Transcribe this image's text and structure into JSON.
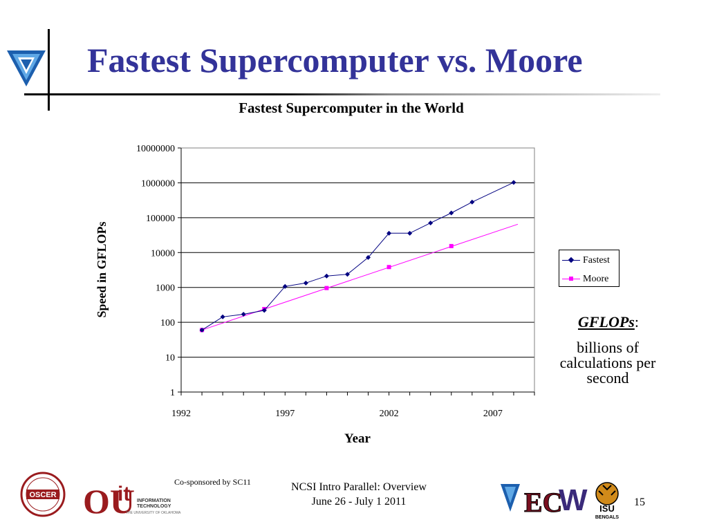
{
  "slide": {
    "title": "Fastest Supercomputer vs. Moore",
    "gflops_term": "GFLOPs",
    "gflops_colon": ":",
    "gflops_desc_line1": "billions of",
    "gflops_desc_line2": "calculations per",
    "gflops_desc_line3": "second"
  },
  "footer": {
    "cosponsor": "Co-sponsored by SC11",
    "line1": "NCSI Intro Parallel: Overview",
    "line2": "June 26 - July 1 2011",
    "page_number": "15",
    "logos": [
      "OSCER",
      "OU",
      "OU IT Information Technology",
      "Blue triangle",
      "EC",
      "W",
      "ISU Bengals"
    ],
    "logo_text": {
      "oscer": "OSCER",
      "ou": "OU",
      "it_main": "it",
      "it_info": "INFORMATION",
      "it_tech": "TECHNOLOGY",
      "it_univ": "THE UNIVERSITY OF OKLAHOMA",
      "ec": "EC",
      "w": "W",
      "isu": "ISU",
      "bengals": "BENGALS"
    }
  },
  "colors": {
    "title": "#333399",
    "fastest": "#000080",
    "moore": "#ff00ff"
  },
  "chart_data": {
    "type": "line",
    "title": "Fastest Supercomputer in the World",
    "xlabel": "Year",
    "ylabel": "Speed in GFLOPs",
    "yscale": "log",
    "ylim": [
      1,
      10000000
    ],
    "xlim": [
      1992,
      2009
    ],
    "y_ticks": [
      "1",
      "10",
      "100",
      "1000",
      "10000",
      "100000",
      "1000000",
      "10000000"
    ],
    "x_ticks": [
      "1992",
      "1997",
      "2002",
      "2007"
    ],
    "grid": "horizontal",
    "legend": "right",
    "series": [
      {
        "name": "Fastest",
        "color": "#000080",
        "marker": "diamond",
        "x": [
          1993,
          1994,
          1995,
          1996,
          1997,
          1998,
          1999,
          2000,
          2001,
          2002,
          2003,
          2004,
          2005,
          2006,
          2008
        ],
        "y": [
          60,
          143,
          170,
          220,
          1068,
          1338,
          2121,
          2379,
          7226,
          35860,
          35860,
          70720,
          136800,
          280600,
          1026000
        ]
      },
      {
        "name": "Moore",
        "color": "#ff00ff",
        "marker": "square",
        "x": [
          1993,
          1996,
          1999,
          2002,
          2005
        ],
        "y": [
          60,
          240,
          960,
          3840,
          15360
        ],
        "trend_x": [
          1993,
          2008.2
        ],
        "trend_y": [
          60,
          65000
        ]
      }
    ]
  }
}
